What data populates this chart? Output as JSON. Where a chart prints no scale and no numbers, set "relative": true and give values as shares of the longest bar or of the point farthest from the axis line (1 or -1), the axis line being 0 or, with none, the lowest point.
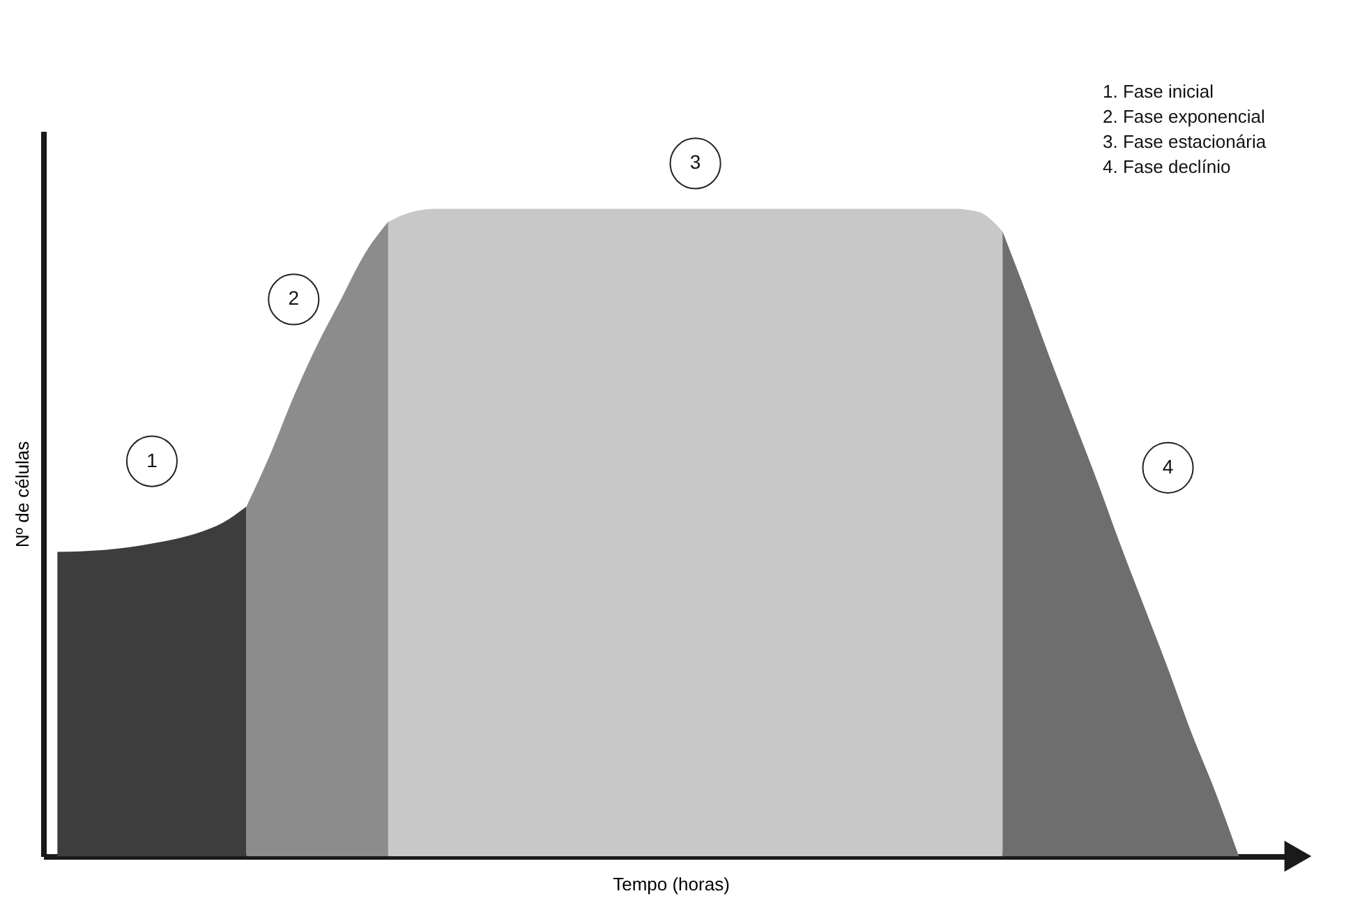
{
  "chart_data": {
    "type": "area",
    "relative": true,
    "tick_labels": false,
    "xlabel": "Tempo (horas)",
    "ylabel": "Nº de células",
    "categories": [
      null,
      null,
      null,
      null,
      null,
      null,
      null,
      null,
      null,
      null,
      null,
      null,
      null,
      null,
      null,
      null,
      null,
      null,
      null,
      null,
      null,
      null,
      null,
      null,
      null,
      null,
      null,
      null,
      null,
      null,
      null,
      null,
      null,
      null,
      null,
      null,
      null,
      null,
      null,
      null,
      null,
      null,
      null,
      null,
      null,
      null,
      null,
      null,
      null,
      null,
      null
    ],
    "series": [
      {
        "color": "#3d3d3d",
        "values": [
          0.47,
          0.471,
          0.473,
          0.477,
          0.483,
          0.49,
          0.5,
          0.515,
          0.54,
          null,
          null,
          null,
          null,
          null,
          null,
          null,
          null,
          null,
          null,
          null,
          null,
          null,
          null,
          null,
          null,
          null,
          null,
          null,
          null,
          null,
          null,
          null,
          null,
          null,
          null,
          null,
          null,
          null,
          null,
          null,
          null,
          null,
          null,
          null,
          null,
          null,
          null,
          null,
          null,
          null,
          null
        ]
      },
      {
        "color": "#8c8c8c",
        "values": [
          null,
          null,
          null,
          null,
          null,
          null,
          null,
          null,
          0.54,
          0.62,
          0.71,
          0.79,
          0.86,
          0.93,
          0.98,
          null,
          null,
          null,
          null,
          null,
          null,
          null,
          null,
          null,
          null,
          null,
          null,
          null,
          null,
          null,
          null,
          null,
          null,
          null,
          null,
          null,
          null,
          null,
          null,
          null,
          null,
          null,
          null,
          null,
          null,
          null,
          null,
          null,
          null,
          null,
          null
        ]
      },
      {
        "color": "#c8c8c8",
        "values": [
          null,
          null,
          null,
          null,
          null,
          null,
          null,
          null,
          null,
          null,
          null,
          null,
          null,
          null,
          0.98,
          0.995,
          1,
          1,
          1,
          1,
          1,
          1,
          1,
          1,
          1,
          1,
          1,
          1,
          1,
          1,
          1,
          1,
          1,
          1,
          1,
          1,
          1,
          1,
          1,
          0.995,
          0.965,
          null,
          null,
          null,
          null,
          null,
          null,
          null,
          null,
          null,
          null
        ]
      },
      {
        "color": "#6e6e6e",
        "values": [
          null,
          null,
          null,
          null,
          null,
          null,
          null,
          null,
          null,
          null,
          null,
          null,
          null,
          null,
          null,
          null,
          null,
          null,
          null,
          null,
          null,
          null,
          null,
          null,
          null,
          null,
          null,
          null,
          null,
          null,
          null,
          null,
          null,
          null,
          null,
          null,
          null,
          null,
          null,
          null,
          0.965,
          0.87,
          0.77,
          0.675,
          0.58,
          0.48,
          0.385,
          0.29,
          0.19,
          0.1,
          0
        ]
      }
    ],
    "annotations": [
      "1",
      "2",
      "3",
      "4",
      "1. Fase inicial",
      "2. Fase exponencial",
      "3. Fase estacionária",
      "4. Fase declínio"
    ]
  }
}
